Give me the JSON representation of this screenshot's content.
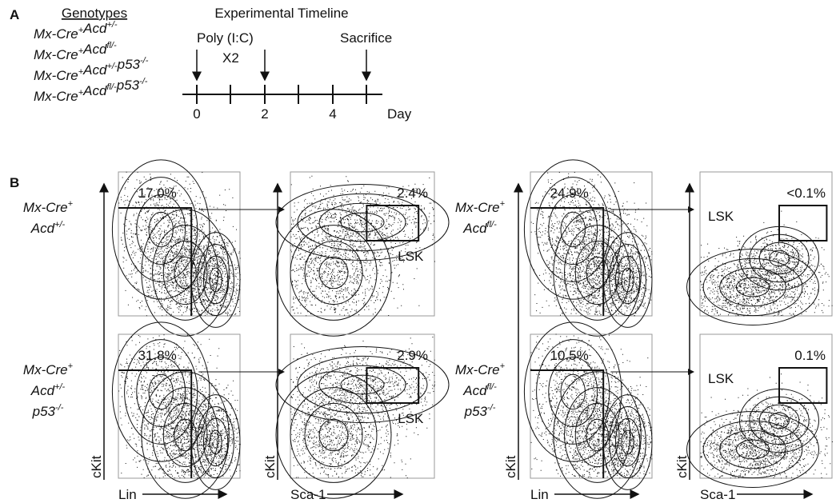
{
  "panel_a": {
    "label": "A",
    "genotypes_title": "Genotypes",
    "genotypes": [
      [
        [
          "Mx-Cre",
          "+"
        ],
        [
          "Acd",
          "+/-"
        ]
      ],
      [
        [
          "Mx-Cre",
          "+"
        ],
        [
          "Acd",
          "fl/-"
        ]
      ],
      [
        [
          "Mx-Cre",
          "+"
        ],
        [
          "Acd",
          "+/-"
        ],
        [
          "p53",
          "-/-"
        ]
      ],
      [
        [
          "Mx-Cre",
          "+"
        ],
        [
          "Acd",
          "fl/-"
        ],
        [
          "p53",
          "-/-"
        ]
      ]
    ],
    "timeline_title": "Experimental Timeline",
    "poly": "Poly (I:C)",
    "repeat": "X2",
    "sacrifice": "Sacrifice",
    "day_labels": [
      "0",
      "2",
      "4"
    ],
    "day_unit": "Day"
  },
  "panel_b": {
    "label": "B",
    "axes": {
      "ckit": "cKit",
      "lin": "Lin",
      "sca1": "Sca-1"
    },
    "samples": [
      {
        "genotype": [
          [
            [
              "Mx-Cre",
              "+"
            ]
          ],
          [
            [
              "Acd",
              "+/-"
            ]
          ]
        ],
        "lin_gate": "17.0%",
        "lsk_gate": "2.4%",
        "lsk_label": "LSK"
      },
      {
        "genotype": [
          [
            [
              "Mx-Cre",
              "+"
            ]
          ],
          [
            [
              "Acd",
              "fl/-"
            ]
          ]
        ],
        "lin_gate": "24.9%",
        "lsk_gate": "<0.1%",
        "lsk_label": "LSK"
      },
      {
        "genotype": [
          [
            [
              "Mx-Cre",
              "+"
            ]
          ],
          [
            [
              "Acd",
              "+/-"
            ]
          ],
          [
            [
              "p53",
              "-/-"
            ]
          ]
        ],
        "lin_gate": "31.8%",
        "lsk_gate": "2.9%",
        "lsk_label": "LSK"
      },
      {
        "genotype": [
          [
            [
              "Mx-Cre",
              "+"
            ]
          ],
          [
            [
              "Acd",
              "fl/-"
            ]
          ],
          [
            [
              "p53",
              "-/-"
            ]
          ]
        ],
        "lin_gate": "10.5%",
        "lsk_gate": "0.1%",
        "lsk_label": "LSK"
      }
    ]
  }
}
